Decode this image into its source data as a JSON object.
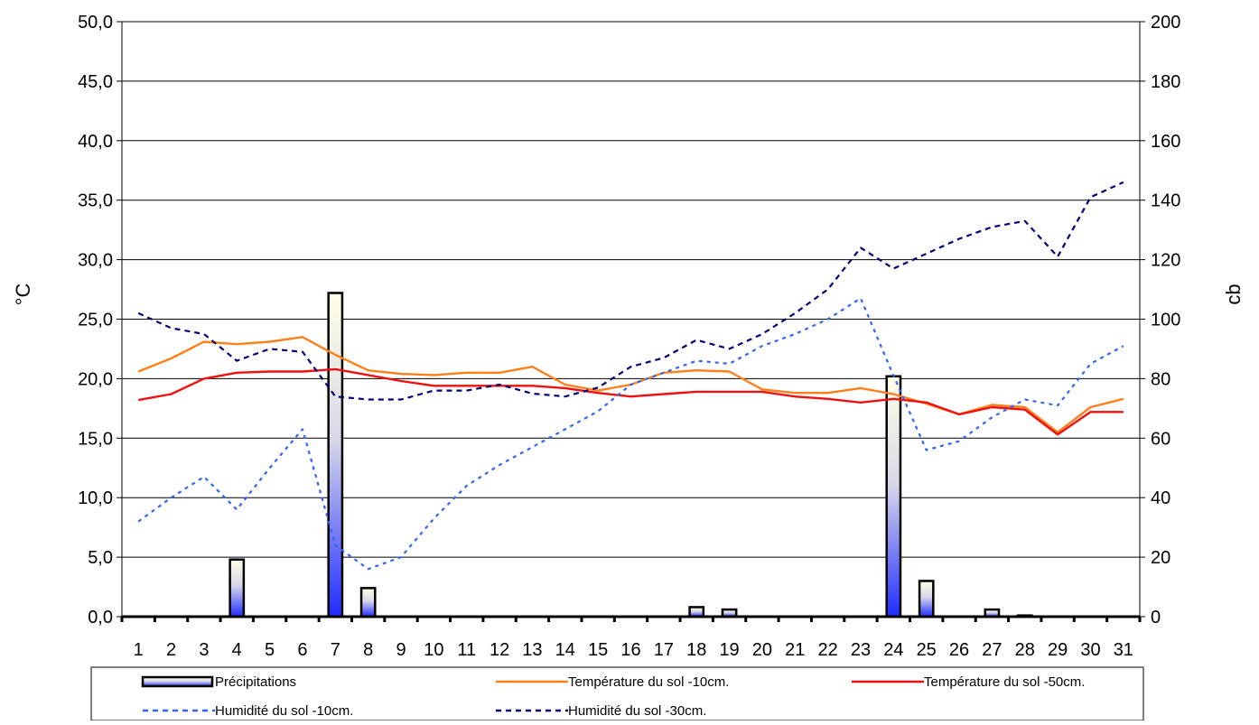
{
  "chart_data": {
    "type": "bar",
    "title": "",
    "xlabel": "",
    "ylabel": "°C",
    "y2label": "cb",
    "categories": [
      "1",
      "2",
      "3",
      "4",
      "5",
      "6",
      "7",
      "8",
      "9",
      "10",
      "11",
      "12",
      "13",
      "14",
      "15",
      "16",
      "17",
      "18",
      "19",
      "20",
      "21",
      "22",
      "23",
      "24",
      "25",
      "26",
      "27",
      "28",
      "29",
      "30",
      "31"
    ],
    "ylim": [
      0,
      50
    ],
    "y2lim": [
      0,
      200
    ],
    "y_ticks": [
      "0,0",
      "5,0",
      "10,0",
      "15,0",
      "20,0",
      "25,0",
      "30,0",
      "35,0",
      "40,0",
      "45,0",
      "50,0"
    ],
    "y2_ticks": [
      "0",
      "20",
      "40",
      "60",
      "80",
      "100",
      "120",
      "140",
      "160",
      "180",
      "200"
    ],
    "grid": "horizontal",
    "legend_position": "bottom",
    "series": [
      {
        "name": "Précipitations",
        "kind": "bar",
        "axis": "left",
        "color": "#3333cc",
        "values": [
          0,
          0,
          0,
          4.8,
          0,
          0,
          27.2,
          2.4,
          0,
          0,
          0,
          0,
          0,
          0,
          0,
          0,
          0,
          0.8,
          0.6,
          0,
          0,
          0,
          0,
          20.2,
          3.0,
          0,
          0.6,
          0.1,
          0,
          0,
          0
        ]
      },
      {
        "name": "Température du sol -10cm.",
        "kind": "line",
        "axis": "left",
        "color": "#ff7f1a",
        "style": "solid",
        "values": [
          20.6,
          21.7,
          23.1,
          22.9,
          23.1,
          23.5,
          22.0,
          20.7,
          20.4,
          20.3,
          20.5,
          20.5,
          21.0,
          19.5,
          19.0,
          19.5,
          20.5,
          20.7,
          20.6,
          19.1,
          18.8,
          18.8,
          19.2,
          18.7,
          17.9,
          17.0,
          17.8,
          17.6,
          15.5,
          17.6,
          18.3
        ]
      },
      {
        "name": "Température du sol -50cm.",
        "kind": "line",
        "axis": "left",
        "color": "#ee1111",
        "style": "solid",
        "values": [
          18.2,
          18.7,
          20.0,
          20.5,
          20.6,
          20.6,
          20.8,
          20.3,
          19.8,
          19.4,
          19.4,
          19.4,
          19.4,
          19.2,
          18.8,
          18.5,
          18.7,
          18.9,
          18.9,
          18.9,
          18.5,
          18.3,
          18.0,
          18.3,
          18.0,
          17.0,
          17.6,
          17.4,
          15.3,
          17.2,
          17.2
        ]
      },
      {
        "name": "Humidité du sol -10cm.",
        "kind": "line",
        "axis": "right",
        "color": "#3366ee",
        "style": "dashed",
        "values": [
          32,
          40,
          47,
          36,
          50,
          63,
          24,
          16,
          20,
          33,
          44,
          51,
          57,
          63,
          69,
          78,
          82,
          86,
          85,
          91,
          95,
          100,
          107,
          81,
          56,
          59,
          67,
          73,
          71,
          85,
          91
        ]
      },
      {
        "name": "Humidité du sol -30cm.",
        "kind": "line",
        "axis": "right",
        "color": "#000077",
        "style": "dashed",
        "values": [
          102,
          97,
          95,
          86,
          90,
          89,
          74,
          73,
          73,
          76,
          76,
          78,
          75,
          74,
          77,
          84,
          87,
          93,
          90,
          95,
          102,
          110,
          124,
          117,
          122,
          127,
          131,
          133,
          121,
          141,
          146
        ]
      }
    ]
  }
}
